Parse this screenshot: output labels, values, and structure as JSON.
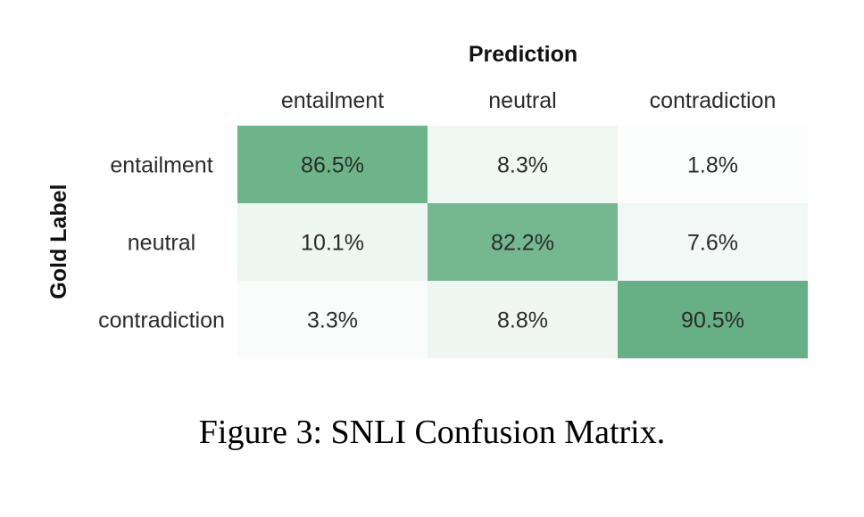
{
  "chart_data": {
    "type": "heatmap",
    "x_title": "Prediction",
    "y_title": "Gold Label",
    "x_categories": [
      "entailment",
      "neutral",
      "contradiction"
    ],
    "y_categories": [
      "entailment",
      "neutral",
      "contradiction"
    ],
    "values": [
      [
        86.5,
        8.3,
        1.8
      ],
      [
        10.1,
        82.2,
        7.6
      ],
      [
        3.3,
        8.8,
        90.5
      ]
    ],
    "value_labels": [
      [
        "86.5%",
        "8.3%",
        "1.8%"
      ],
      [
        "10.1%",
        "82.2%",
        "7.6%"
      ],
      [
        "3.3%",
        "8.8%",
        "90.5%"
      ]
    ],
    "color_low": "#ffffff",
    "color_high": "#57a878",
    "value_range": [
      0,
      100
    ]
  },
  "caption": "Figure 3: SNLI Confusion Matrix."
}
